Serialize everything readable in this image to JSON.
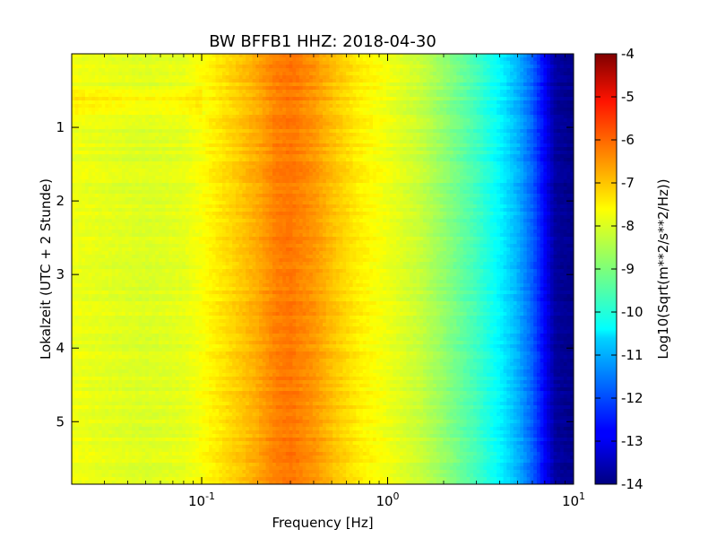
{
  "chart_data": {
    "type": "heatmap",
    "title": "BW BFFB1 HHZ: 2018-04-30",
    "xlabel": "Frequency [Hz]",
    "ylabel": "Lokalzeit (UTC + 2 Stunde)",
    "xscale": "log",
    "xlim": [
      0.02,
      10
    ],
    "ylim": [
      5.85,
      0
    ],
    "x_ticks": [
      {
        "value": 0.1,
        "base": "10",
        "exp": "-1"
      },
      {
        "value": 1,
        "base": "10",
        "exp": "0"
      },
      {
        "value": 10,
        "base": "10",
        "exp": "1"
      }
    ],
    "y_ticks": [
      {
        "value": 1,
        "label": "1"
      },
      {
        "value": 2,
        "label": "2"
      },
      {
        "value": 3,
        "label": "3"
      },
      {
        "value": 4,
        "label": "4"
      },
      {
        "value": 5,
        "label": "5"
      }
    ],
    "colorbar": {
      "label": "Log10(Sqrt(m**2/s**2/Hz))",
      "min": -14,
      "max": -4,
      "colormap": "jet",
      "ticks": [
        "-4",
        "-5",
        "-6",
        "-7",
        "-8",
        "-9",
        "-10",
        "-11",
        "-12",
        "-13",
        "-14"
      ]
    },
    "spectrum_profile": {
      "frequencies": [
        0.02,
        0.03,
        0.05,
        0.08,
        0.1,
        0.15,
        0.2,
        0.25,
        0.3,
        0.4,
        0.5,
        0.7,
        1.0,
        1.5,
        2.0,
        3.0,
        4.0,
        5.0,
        6.0,
        7.0,
        8.0,
        10.0
      ],
      "values": [
        -7.9,
        -8.0,
        -8.1,
        -8.0,
        -7.8,
        -7.3,
        -6.9,
        -6.5,
        -6.4,
        -6.7,
        -7.1,
        -7.6,
        -7.9,
        -8.3,
        -8.8,
        -9.6,
        -10.3,
        -11.0,
        -11.8,
        -12.8,
        -13.7,
        -13.9
      ]
    },
    "grid": false
  }
}
